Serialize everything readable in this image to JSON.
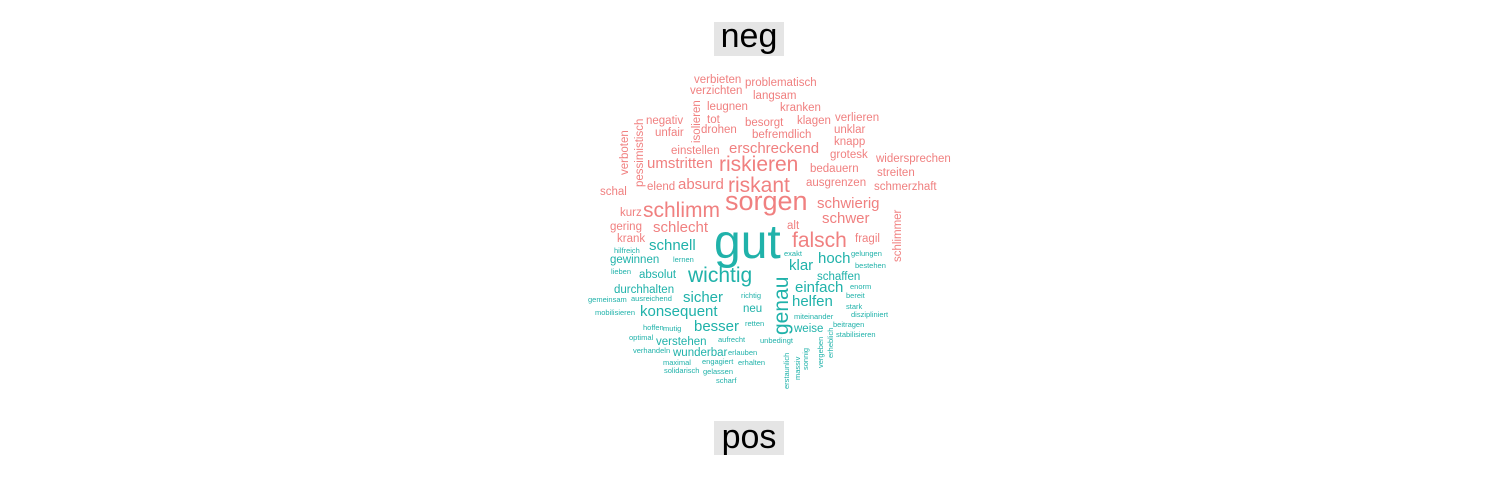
{
  "comparison_cloud": {
    "categories": [
      {
        "name": "neg",
        "color": "#F08080"
      },
      {
        "name": "pos",
        "color": "#20B2AA"
      }
    ],
    "label_background": "#E5E5E5",
    "words": [
      {
        "text": "verbieten",
        "category": "neg",
        "weight": 2,
        "vertical": false
      },
      {
        "text": "problematisch",
        "category": "neg",
        "weight": 2,
        "vertical": false
      },
      {
        "text": "verzichten",
        "category": "neg",
        "weight": 2,
        "vertical": false
      },
      {
        "text": "langsam",
        "category": "neg",
        "weight": 2,
        "vertical": false
      },
      {
        "text": "isolieren",
        "category": "neg",
        "weight": 2,
        "vertical": true
      },
      {
        "text": "leugnen",
        "category": "neg",
        "weight": 2,
        "vertical": false
      },
      {
        "text": "kranken",
        "category": "neg",
        "weight": 2,
        "vertical": false
      },
      {
        "text": "negativ",
        "category": "neg",
        "weight": 2,
        "vertical": false
      },
      {
        "text": "tot",
        "category": "neg",
        "weight": 2,
        "vertical": false
      },
      {
        "text": "besorgt",
        "category": "neg",
        "weight": 2,
        "vertical": false
      },
      {
        "text": "klagen",
        "category": "neg",
        "weight": 2,
        "vertical": false
      },
      {
        "text": "verlieren",
        "category": "neg",
        "weight": 2,
        "vertical": false
      },
      {
        "text": "unfair",
        "category": "neg",
        "weight": 2,
        "vertical": false
      },
      {
        "text": "drohen",
        "category": "neg",
        "weight": 2,
        "vertical": false
      },
      {
        "text": "befremdlich",
        "category": "neg",
        "weight": 2,
        "vertical": false
      },
      {
        "text": "unklar",
        "category": "neg",
        "weight": 2,
        "vertical": false
      },
      {
        "text": "verboten",
        "category": "neg",
        "weight": 2,
        "vertical": true
      },
      {
        "text": "pessimistisch",
        "category": "neg",
        "weight": 2,
        "vertical": true
      },
      {
        "text": "knapp",
        "category": "neg",
        "weight": 2,
        "vertical": false
      },
      {
        "text": "einstellen",
        "category": "neg",
        "weight": 2,
        "vertical": false
      },
      {
        "text": "erschreckend",
        "category": "neg",
        "weight": 3,
        "vertical": false
      },
      {
        "text": "grotesk",
        "category": "neg",
        "weight": 2,
        "vertical": false
      },
      {
        "text": "widersprechen",
        "category": "neg",
        "weight": 2,
        "vertical": false
      },
      {
        "text": "umstritten",
        "category": "neg",
        "weight": 3,
        "vertical": false
      },
      {
        "text": "riskieren",
        "category": "neg",
        "weight": 4,
        "vertical": false
      },
      {
        "text": "bedauern",
        "category": "neg",
        "weight": 2,
        "vertical": false
      },
      {
        "text": "streiten",
        "category": "neg",
        "weight": 2,
        "vertical": false
      },
      {
        "text": "elend",
        "category": "neg",
        "weight": 2,
        "vertical": false
      },
      {
        "text": "absurd",
        "category": "neg",
        "weight": 3,
        "vertical": false
      },
      {
        "text": "riskant",
        "category": "neg",
        "weight": 4,
        "vertical": false
      },
      {
        "text": "ausgrenzen",
        "category": "neg",
        "weight": 2,
        "vertical": false
      },
      {
        "text": "schmerzhaft",
        "category": "neg",
        "weight": 2,
        "vertical": false
      },
      {
        "text": "schal",
        "category": "neg",
        "weight": 2,
        "vertical": false
      },
      {
        "text": "sorgen",
        "category": "neg",
        "weight": 5,
        "vertical": false
      },
      {
        "text": "schwierig",
        "category": "neg",
        "weight": 3,
        "vertical": false
      },
      {
        "text": "kurz",
        "category": "neg",
        "weight": 2,
        "vertical": false
      },
      {
        "text": "schlimm",
        "category": "neg",
        "weight": 4,
        "vertical": false
      },
      {
        "text": "schlimmer",
        "category": "neg",
        "weight": 2,
        "vertical": true
      },
      {
        "text": "schwer",
        "category": "neg",
        "weight": 3,
        "vertical": false
      },
      {
        "text": "gering",
        "category": "neg",
        "weight": 2,
        "vertical": false
      },
      {
        "text": "schlecht",
        "category": "neg",
        "weight": 3,
        "vertical": false
      },
      {
        "text": "alt",
        "category": "neg",
        "weight": 2,
        "vertical": false
      },
      {
        "text": "krank",
        "category": "neg",
        "weight": 2,
        "vertical": false
      },
      {
        "text": "falsch",
        "category": "neg",
        "weight": 4,
        "vertical": false
      },
      {
        "text": "fragil",
        "category": "neg",
        "weight": 2,
        "vertical": false
      },
      {
        "text": "gut",
        "category": "pos",
        "weight": 6,
        "vertical": false
      },
      {
        "text": "schnell",
        "category": "pos",
        "weight": 3,
        "vertical": false
      },
      {
        "text": "exakt",
        "category": "pos",
        "weight": 1,
        "vertical": false
      },
      {
        "text": "gelungen",
        "category": "pos",
        "weight": 1,
        "vertical": false
      },
      {
        "text": "hilfreich",
        "category": "pos",
        "weight": 1,
        "vertical": false
      },
      {
        "text": "lernen",
        "category": "pos",
        "weight": 1,
        "vertical": false
      },
      {
        "text": "gewinnen",
        "category": "pos",
        "weight": 2,
        "vertical": false
      },
      {
        "text": "klar",
        "category": "pos",
        "weight": 3,
        "vertical": false
      },
      {
        "text": "hoch",
        "category": "pos",
        "weight": 3,
        "vertical": false
      },
      {
        "text": "bestehen",
        "category": "pos",
        "weight": 1,
        "vertical": false
      },
      {
        "text": "lieben",
        "category": "pos",
        "weight": 1,
        "vertical": false
      },
      {
        "text": "absolut",
        "category": "pos",
        "weight": 2,
        "vertical": false
      },
      {
        "text": "wichtig",
        "category": "pos",
        "weight": 4,
        "vertical": false
      },
      {
        "text": "genau",
        "category": "pos",
        "weight": 4,
        "vertical": true
      },
      {
        "text": "schaffen",
        "category": "pos",
        "weight": 2,
        "vertical": false
      },
      {
        "text": "durchhalten",
        "category": "pos",
        "weight": 2,
        "vertical": false
      },
      {
        "text": "einfach",
        "category": "pos",
        "weight": 3,
        "vertical": false
      },
      {
        "text": "enorm",
        "category": "pos",
        "weight": 1,
        "vertical": false
      },
      {
        "text": "gemeinsam",
        "category": "pos",
        "weight": 1,
        "vertical": false
      },
      {
        "text": "ausreichend",
        "category": "pos",
        "weight": 1,
        "vertical": false
      },
      {
        "text": "sicher",
        "category": "pos",
        "weight": 3,
        "vertical": false
      },
      {
        "text": "richtig",
        "category": "pos",
        "weight": 1,
        "vertical": false
      },
      {
        "text": "helfen",
        "category": "pos",
        "weight": 3,
        "vertical": false
      },
      {
        "text": "bereit",
        "category": "pos",
        "weight": 1,
        "vertical": false
      },
      {
        "text": "mobilisieren",
        "category": "pos",
        "weight": 1,
        "vertical": false
      },
      {
        "text": "konsequent",
        "category": "pos",
        "weight": 3,
        "vertical": false
      },
      {
        "text": "neu",
        "category": "pos",
        "weight": 2,
        "vertical": false
      },
      {
        "text": "stark",
        "category": "pos",
        "weight": 1,
        "vertical": false
      },
      {
        "text": "miteinander",
        "category": "pos",
        "weight": 1,
        "vertical": false
      },
      {
        "text": "diszipliniert",
        "category": "pos",
        "weight": 1,
        "vertical": false
      },
      {
        "text": "hoffen",
        "category": "pos",
        "weight": 1,
        "vertical": false
      },
      {
        "text": "mutig",
        "category": "pos",
        "weight": 1,
        "vertical": false
      },
      {
        "text": "besser",
        "category": "pos",
        "weight": 3,
        "vertical": false
      },
      {
        "text": "retten",
        "category": "pos",
        "weight": 1,
        "vertical": false
      },
      {
        "text": "weise",
        "category": "pos",
        "weight": 2,
        "vertical": false
      },
      {
        "text": "beitragen",
        "category": "pos",
        "weight": 1,
        "vertical": false
      },
      {
        "text": "optimal",
        "category": "pos",
        "weight": 1,
        "vertical": false
      },
      {
        "text": "verstehen",
        "category": "pos",
        "weight": 2,
        "vertical": false
      },
      {
        "text": "aufrecht",
        "category": "pos",
        "weight": 1,
        "vertical": false
      },
      {
        "text": "unbedingt",
        "category": "pos",
        "weight": 1,
        "vertical": false
      },
      {
        "text": "stabilisieren",
        "category": "pos",
        "weight": 1,
        "vertical": false
      },
      {
        "text": "verhandeln",
        "category": "pos",
        "weight": 1,
        "vertical": false
      },
      {
        "text": "wunderbar",
        "category": "pos",
        "weight": 2,
        "vertical": false
      },
      {
        "text": "erlauben",
        "category": "pos",
        "weight": 1,
        "vertical": false
      },
      {
        "text": "erheblich",
        "category": "pos",
        "weight": 1,
        "vertical": true
      },
      {
        "text": "vergeben",
        "category": "pos",
        "weight": 1,
        "vertical": true
      },
      {
        "text": "sonnig",
        "category": "pos",
        "weight": 1,
        "vertical": true
      },
      {
        "text": "maximal",
        "category": "pos",
        "weight": 1,
        "vertical": false
      },
      {
        "text": "engagiert",
        "category": "pos",
        "weight": 1,
        "vertical": false
      },
      {
        "text": "erhalten",
        "category": "pos",
        "weight": 1,
        "vertical": false
      },
      {
        "text": "solidarisch",
        "category": "pos",
        "weight": 1,
        "vertical": false
      },
      {
        "text": "gelassen",
        "category": "pos",
        "weight": 1,
        "vertical": false
      },
      {
        "text": "erstaunlich",
        "category": "pos",
        "weight": 1,
        "vertical": true
      },
      {
        "text": "massiv",
        "category": "pos",
        "weight": 1,
        "vertical": true
      },
      {
        "text": "scharf",
        "category": "pos",
        "weight": 1,
        "vertical": false
      }
    ]
  }
}
